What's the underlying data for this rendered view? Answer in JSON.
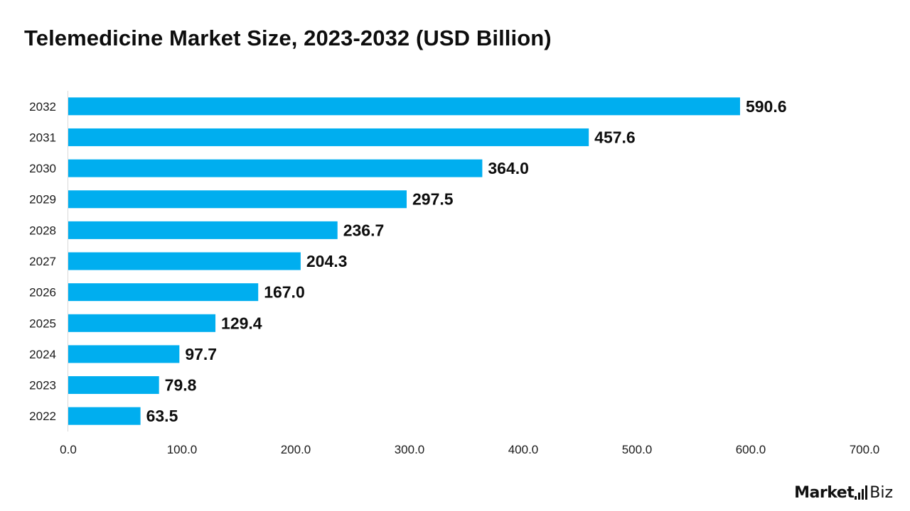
{
  "chart_data": {
    "type": "bar",
    "orientation": "horizontal",
    "title": "Telemedicine Market Size, 2023-2032 (USD Billion)",
    "xlabel": "",
    "ylabel": "",
    "categories": [
      "2032",
      "2031",
      "2030",
      "2029",
      "2028",
      "2027",
      "2026",
      "2025",
      "2024",
      "2023",
      "2022"
    ],
    "values": [
      590.6,
      457.6,
      364.0,
      297.5,
      236.7,
      204.3,
      167.0,
      129.4,
      97.7,
      79.8,
      63.5
    ],
    "value_labels": [
      "590.6",
      "457.6",
      "364.0",
      "297.5",
      "236.7",
      "204.3",
      "167.0",
      "129.4",
      "97.7",
      "79.8",
      "63.5"
    ],
    "xlim": [
      0,
      700
    ],
    "x_ticks": [
      "0.0",
      "100.0",
      "200.0",
      "300.0",
      "400.0",
      "500.0",
      "600.0",
      "700.0"
    ],
    "grid": false,
    "bar_color": "#00AEEF"
  },
  "brand": {
    "name_bold": "Market",
    "name_light": "Biz",
    "icon": "bar-signal-icon"
  }
}
